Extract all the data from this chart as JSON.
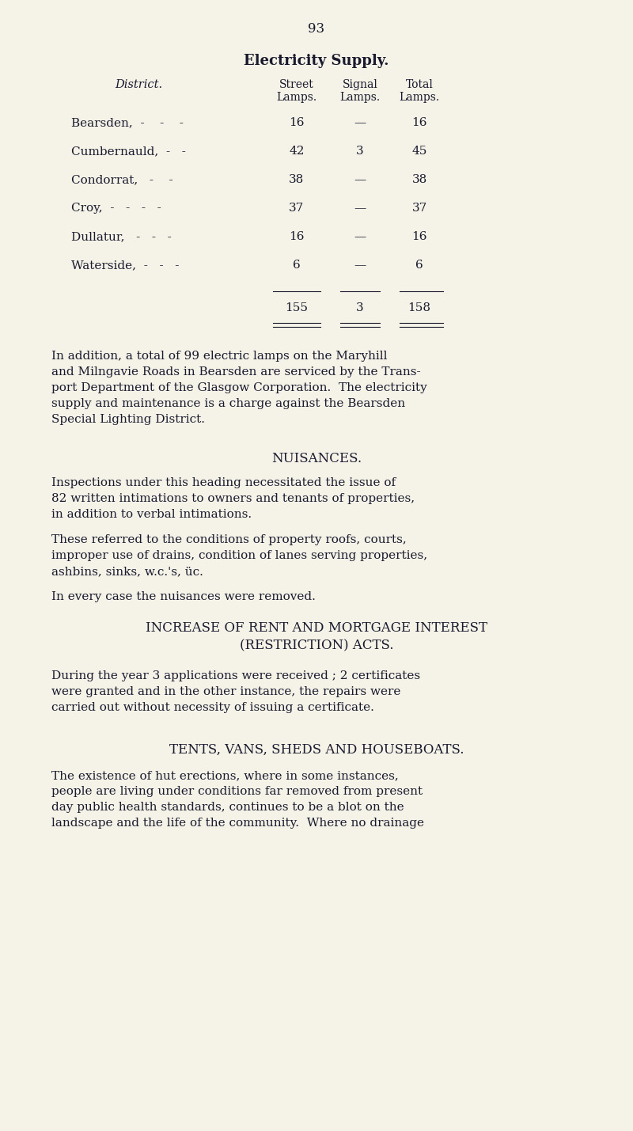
{
  "page_number": "93",
  "bg_color": "#f5f2e8",
  "text_color": "#1a1a2e",
  "section_title": "Electricity Supply.",
  "table_header": [
    "District.",
    "Street\nLamps.",
    "Signal\nLamps.",
    "Total\nLamps."
  ],
  "table_rows": [
    [
      "Bearsden,  -    -    -",
      "16",
      "—",
      "16"
    ],
    [
      "Cumbernauld,  -   -",
      "42",
      "3",
      "45"
    ],
    [
      "Condorrat,   -    -",
      "38",
      "—",
      "38"
    ],
    [
      "Croy,  -   -   -   -",
      "37",
      "—",
      "37"
    ],
    [
      "Dullatur,   -   -   -",
      "16",
      "—",
      "16"
    ],
    [
      "Waterside,  -   -   -",
      "6",
      "—",
      "6"
    ]
  ],
  "table_totals": [
    "155",
    "3",
    "158"
  ],
  "para1": "In addition, a total of 99 electric lamps on the Maryhill and Milngavie Roads in Bearsden are serviced by the Trans-port Department of the Glasgow Corporation.  The electricity supply and maintenance is a charge against the Bearsden Special Lighting District.",
  "nuisances_title": "NUISANCES.",
  "nuisances_para1": "Inspections under this heading necessitated the issue of 82 written intimations to owners and tenants of properties, in addition to verbal intimations.",
  "nuisances_para2": "These referred to the conditions of property roofs, courts, improper use of drains, condition of lanes serving properties, ashbins, sinks, w.c.'s, üc.",
  "nuisances_para3": "In every case the nuisances were removed.",
  "increase_title": "INCREASE OF RENT AND MORTGAGE INTEREST\n(RESTRICTION) ACTS.",
  "increase_para": "During the year 3 applications were received ; 2 certificates were granted and in the other instance, the repairs were carried out without necessity of issuing a certificate.",
  "tents_title": "TENTS, VANS, SHEDS AND HOUSEBOATS.",
  "tents_para": "The existence of hut erections, where in some instances, people are living under conditions far removed from present day public health standards, continues to be a blot on the landscape and the life of the community.  Where no drainage"
}
